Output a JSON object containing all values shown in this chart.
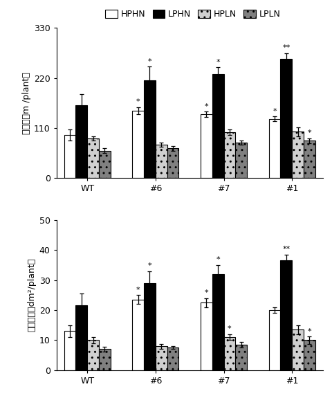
{
  "categories": [
    "WT",
    "#6",
    "#7",
    "#1"
  ],
  "top_chart": {
    "ylabel": "总根长（m /plant）",
    "ylim": [
      0,
      330
    ],
    "yticks": [
      0,
      110,
      220,
      330
    ],
    "HPHN": [
      95,
      148,
      140,
      130
    ],
    "LPHN": [
      160,
      215,
      228,
      262
    ],
    "HPLN": [
      87,
      73,
      100,
      102
    ],
    "LPLN": [
      60,
      65,
      78,
      82
    ],
    "HPHN_err": [
      12,
      8,
      6,
      5
    ],
    "LPHN_err": [
      25,
      30,
      15,
      12
    ],
    "HPLN_err": [
      5,
      5,
      6,
      10
    ],
    "LPLN_err": [
      5,
      5,
      5,
      5
    ],
    "sig_HPHN": [
      "",
      "*",
      "*",
      "*"
    ],
    "sig_LPHN": [
      "",
      "*",
      "*",
      "**"
    ],
    "sig_HPLN": [
      "",
      "",
      "",
      ""
    ],
    "sig_LPLN": [
      "",
      "",
      "",
      "*"
    ]
  },
  "bottom_chart": {
    "ylabel": "根表面积（dm²/plant）",
    "ylim": [
      0,
      50
    ],
    "yticks": [
      0,
      10,
      20,
      30,
      40,
      50
    ],
    "HPHN": [
      13,
      23.5,
      22.5,
      20
    ],
    "LPHN": [
      21.5,
      29,
      32,
      36.5
    ],
    "HPLN": [
      10,
      8,
      11,
      13.5
    ],
    "LPLN": [
      7,
      7.5,
      8.5,
      10
    ],
    "HPHN_err": [
      2,
      1.5,
      1.5,
      1
    ],
    "LPHN_err": [
      4,
      4,
      3,
      2
    ],
    "HPLN_err": [
      1,
      0.8,
      1,
      1.5
    ],
    "LPLN_err": [
      0.8,
      0.5,
      1,
      1.2
    ],
    "sig_HPHN": [
      "",
      "*",
      "*",
      ""
    ],
    "sig_LPHN": [
      "",
      "*",
      "*",
      "**"
    ],
    "sig_HPLN": [
      "",
      "",
      "*",
      ""
    ],
    "sig_LPLN": [
      "",
      "",
      "",
      "*"
    ]
  },
  "bar_colors": [
    "white",
    "black",
    "#d0d0d0",
    "#808080"
  ],
  "bar_hatches": [
    "",
    "",
    "..",
    ".."
  ],
  "edgecolor": "black",
  "bar_width": 0.17,
  "legend_labels": [
    "HPHN",
    "LPHN",
    "HPLN",
    "LPLN"
  ]
}
